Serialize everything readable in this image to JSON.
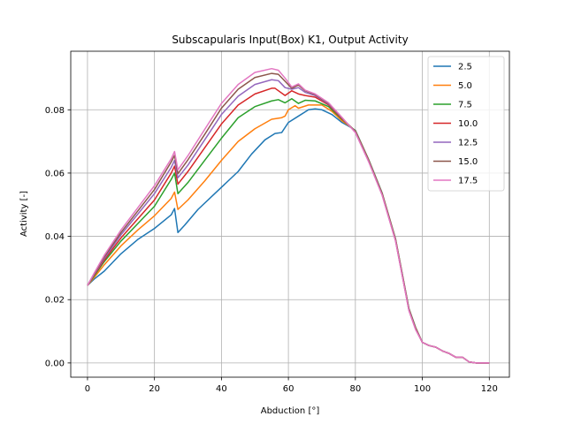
{
  "chart_data": {
    "type": "line",
    "title": "Subscapularis Input(Box) K1, Output Activity",
    "xlabel": "Abduction [°]",
    "ylabel": "Activity [-]",
    "xlim": [
      -5,
      126
    ],
    "ylim": [
      -0.0045,
      0.0985
    ],
    "xticks": [
      0,
      20,
      40,
      60,
      80,
      100,
      120
    ],
    "xtick_labels": [
      "0",
      "20",
      "40",
      "60",
      "80",
      "100",
      "120"
    ],
    "yticks": [
      0.0,
      0.02,
      0.04,
      0.06,
      0.08
    ],
    "ytick_labels": [
      "0.00",
      "0.02",
      "0.04",
      "0.06",
      "0.08"
    ],
    "grid": true,
    "legend_position": "top-right",
    "shared_tail": [
      [
        80,
        0.0728
      ],
      [
        84,
        0.0635
      ],
      [
        88,
        0.053
      ],
      [
        92,
        0.0385
      ],
      [
        96,
        0.0165
      ],
      [
        98,
        0.0105
      ],
      [
        100,
        0.0065
      ],
      [
        102,
        0.0055
      ],
      [
        104,
        0.005
      ],
      [
        106,
        0.0038
      ],
      [
        108,
        0.003
      ],
      [
        110,
        0.0018
      ],
      [
        112,
        0.0018
      ],
      [
        114,
        0.0003
      ],
      [
        116,
        0.0
      ],
      [
        120,
        0.0
      ]
    ],
    "series": [
      {
        "name": "2.5",
        "color": "#1f77b4",
        "points": [
          [
            0,
            0.0245
          ],
          [
            2,
            0.0265
          ],
          [
            5,
            0.029
          ],
          [
            10,
            0.0345
          ],
          [
            15,
            0.039
          ],
          [
            20,
            0.0425
          ],
          [
            25,
            0.0468
          ],
          [
            26,
            0.0488
          ],
          [
            27,
            0.0412
          ],
          [
            29,
            0.0435
          ],
          [
            33,
            0.0485
          ],
          [
            38,
            0.0535
          ],
          [
            42,
            0.0575
          ],
          [
            45,
            0.0605
          ],
          [
            49,
            0.066
          ],
          [
            53,
            0.0705
          ],
          [
            56,
            0.0725
          ],
          [
            58,
            0.0728
          ],
          [
            60,
            0.076
          ],
          [
            63,
            0.078
          ],
          [
            66,
            0.08
          ],
          [
            68,
            0.0803
          ],
          [
            70,
            0.08
          ],
          [
            73,
            0.0785
          ],
          [
            76,
            0.076
          ],
          [
            78,
            0.0748
          ]
        ]
      },
      {
        "name": "5.0",
        "color": "#ff7f0e",
        "points": [
          [
            0,
            0.0245
          ],
          [
            2,
            0.027
          ],
          [
            5,
            0.031
          ],
          [
            10,
            0.037
          ],
          [
            15,
            0.042
          ],
          [
            20,
            0.0465
          ],
          [
            25,
            0.052
          ],
          [
            26,
            0.054
          ],
          [
            27,
            0.0485
          ],
          [
            30,
            0.0515
          ],
          [
            35,
            0.0575
          ],
          [
            40,
            0.064
          ],
          [
            45,
            0.07
          ],
          [
            50,
            0.074
          ],
          [
            55,
            0.077
          ],
          [
            58,
            0.0775
          ],
          [
            59,
            0.078
          ],
          [
            60,
            0.08
          ],
          [
            62,
            0.0813
          ],
          [
            63,
            0.0805
          ],
          [
            66,
            0.0815
          ],
          [
            70,
            0.0815
          ],
          [
            73,
            0.0795
          ],
          [
            76,
            0.0765
          ],
          [
            78,
            0.075
          ]
        ]
      },
      {
        "name": "7.5",
        "color": "#2ca02c",
        "points": [
          [
            0,
            0.0245
          ],
          [
            2,
            0.0275
          ],
          [
            5,
            0.032
          ],
          [
            10,
            0.0385
          ],
          [
            15,
            0.044
          ],
          [
            20,
            0.0495
          ],
          [
            25,
            0.058
          ],
          [
            26,
            0.06
          ],
          [
            27,
            0.0535
          ],
          [
            30,
            0.057
          ],
          [
            35,
            0.064
          ],
          [
            40,
            0.071
          ],
          [
            45,
            0.0775
          ],
          [
            50,
            0.081
          ],
          [
            55,
            0.0828
          ],
          [
            57,
            0.0832
          ],
          [
            59,
            0.0822
          ],
          [
            61,
            0.0835
          ],
          [
            63,
            0.082
          ],
          [
            65,
            0.083
          ],
          [
            68,
            0.0828
          ],
          [
            72,
            0.081
          ],
          [
            76,
            0.077
          ],
          [
            78,
            0.0752
          ]
        ]
      },
      {
        "name": "10.0",
        "color": "#d62728",
        "points": [
          [
            0,
            0.0245
          ],
          [
            2,
            0.0278
          ],
          [
            5,
            0.0325
          ],
          [
            10,
            0.0395
          ],
          [
            15,
            0.0455
          ],
          [
            20,
            0.0515
          ],
          [
            25,
            0.06
          ],
          [
            26,
            0.0622
          ],
          [
            27,
            0.0565
          ],
          [
            30,
            0.0605
          ],
          [
            35,
            0.068
          ],
          [
            40,
            0.0755
          ],
          [
            45,
            0.0815
          ],
          [
            50,
            0.085
          ],
          [
            55,
            0.0868
          ],
          [
            56,
            0.0868
          ],
          [
            59,
            0.0845
          ],
          [
            61,
            0.086
          ],
          [
            63,
            0.085
          ],
          [
            65,
            0.0845
          ],
          [
            68,
            0.084
          ],
          [
            72,
            0.0815
          ],
          [
            76,
            0.0772
          ],
          [
            78,
            0.0752
          ]
        ]
      },
      {
        "name": "12.5",
        "color": "#9467bd",
        "points": [
          [
            0,
            0.0245
          ],
          [
            2,
            0.028
          ],
          [
            5,
            0.033
          ],
          [
            10,
            0.0405
          ],
          [
            15,
            0.047
          ],
          [
            20,
            0.0535
          ],
          [
            25,
            0.0618
          ],
          [
            26,
            0.064
          ],
          [
            27,
            0.0585
          ],
          [
            30,
            0.0625
          ],
          [
            35,
            0.0705
          ],
          [
            40,
            0.0785
          ],
          [
            45,
            0.0843
          ],
          [
            50,
            0.088
          ],
          [
            55,
            0.0895
          ],
          [
            57,
            0.0892
          ],
          [
            59,
            0.087
          ],
          [
            61,
            0.0865
          ],
          [
            63,
            0.087
          ],
          [
            65,
            0.0855
          ],
          [
            68,
            0.0845
          ],
          [
            72,
            0.0818
          ],
          [
            76,
            0.0774
          ],
          [
            78,
            0.0752
          ]
        ]
      },
      {
        "name": "15.0",
        "color": "#8c564b",
        "points": [
          [
            0,
            0.0245
          ],
          [
            2,
            0.0282
          ],
          [
            5,
            0.0335
          ],
          [
            10,
            0.0412
          ],
          [
            15,
            0.048
          ],
          [
            20,
            0.0548
          ],
          [
            25,
            0.0635
          ],
          [
            26,
            0.0656
          ],
          [
            27,
            0.0598
          ],
          [
            30,
            0.0642
          ],
          [
            35,
            0.0722
          ],
          [
            40,
            0.0805
          ],
          [
            45,
            0.0865
          ],
          [
            50,
            0.0902
          ],
          [
            55,
            0.0915
          ],
          [
            57,
            0.0912
          ],
          [
            59,
            0.089
          ],
          [
            61,
            0.0868
          ],
          [
            63,
            0.0878
          ],
          [
            65,
            0.086
          ],
          [
            68,
            0.0848
          ],
          [
            72,
            0.082
          ],
          [
            76,
            0.0775
          ],
          [
            78,
            0.0752
          ]
        ]
      },
      {
        "name": "17.5",
        "color": "#e377c2",
        "points": [
          [
            0,
            0.0245
          ],
          [
            2,
            0.0284
          ],
          [
            5,
            0.034
          ],
          [
            10,
            0.042
          ],
          [
            15,
            0.049
          ],
          [
            20,
            0.056
          ],
          [
            25,
            0.0645
          ],
          [
            26,
            0.0668
          ],
          [
            27,
            0.061
          ],
          [
            30,
            0.0655
          ],
          [
            35,
            0.0738
          ],
          [
            40,
            0.082
          ],
          [
            45,
            0.088
          ],
          [
            50,
            0.0918
          ],
          [
            55,
            0.093
          ],
          [
            57,
            0.0925
          ],
          [
            59,
            0.09
          ],
          [
            61,
            0.0872
          ],
          [
            63,
            0.0882
          ],
          [
            65,
            0.0862
          ],
          [
            68,
            0.085
          ],
          [
            72,
            0.0822
          ],
          [
            76,
            0.0776
          ],
          [
            78,
            0.0752
          ]
        ]
      }
    ]
  }
}
